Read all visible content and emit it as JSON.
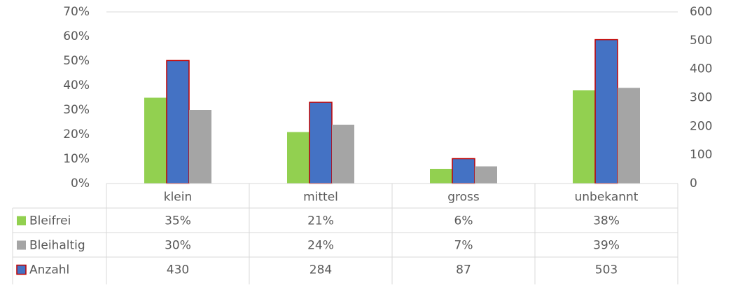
{
  "chart_data": {
    "type": "bar",
    "categories": [
      "klein",
      "mittel",
      "gross",
      "unbekannt"
    ],
    "series": [
      {
        "name": "Bleifrei",
        "color": "#92d050",
        "values": [
          35,
          21,
          6,
          38
        ],
        "value_labels": [
          "35%",
          "21%",
          "6%",
          "38%"
        ]
      },
      {
        "name": "Bleihaltig",
        "color": "#a5a5a5",
        "values": [
          30,
          24,
          7,
          39
        ],
        "value_labels": [
          "30%",
          "24%",
          "7%",
          "39%"
        ]
      },
      {
        "name": "Anzahl",
        "color": "#4472c4",
        "border": "#c00000",
        "axis": "y2",
        "values": [
          430,
          284,
          87,
          503
        ]
      }
    ],
    "bar_order": [
      "Bleifrei",
      "Anzahl",
      "Bleihaltig"
    ],
    "ylim": [
      0,
      70
    ],
    "yticks": [
      {
        "value": 0,
        "label": "0%"
      },
      {
        "value": 10,
        "label": "10%"
      },
      {
        "value": 20,
        "label": "20%"
      },
      {
        "value": 30,
        "label": "30%"
      },
      {
        "value": 40,
        "label": "40%"
      },
      {
        "value": 50,
        "label": "50%"
      },
      {
        "value": 60,
        "label": "60%"
      },
      {
        "value": 70,
        "label": "70%"
      }
    ],
    "y2lim": [
      0,
      600
    ],
    "y2ticks": [
      0,
      100,
      200,
      300,
      400,
      500,
      600
    ],
    "data_table": true
  }
}
